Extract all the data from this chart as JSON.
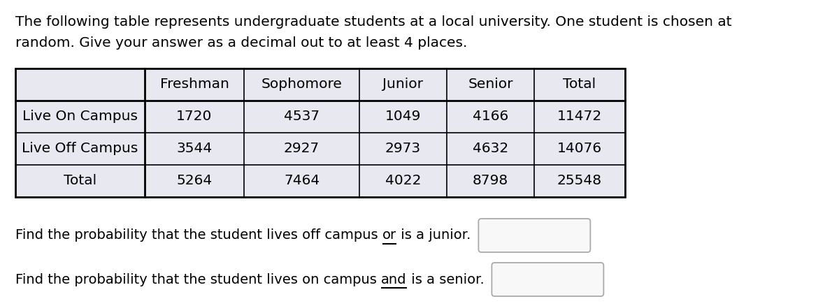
{
  "intro_line1": "The following table represents undergraduate students at a local university. One student is chosen at",
  "intro_line2": "random. Give your answer as a decimal out to at least 4 places.",
  "col_headers": [
    "",
    "Freshman",
    "Sophomore",
    "Junior",
    "Senior",
    "Total"
  ],
  "rows": [
    [
      "Live On Campus",
      "1720",
      "4537",
      "1049",
      "4166",
      "11472"
    ],
    [
      "Live Off Campus",
      "3544",
      "2927",
      "2973",
      "4632",
      "14076"
    ],
    [
      "Total",
      "5264",
      "7464",
      "4022",
      "8798",
      "25548"
    ]
  ],
  "q1_before": "Find the probability that the student lives off campus ",
  "q1_keyword": "or",
  "q1_after": " is a junior.",
  "q2_before": "Find the probability that the student lives on campus ",
  "q2_keyword": "and",
  "q2_after": " is a senior.",
  "cell_bg": "#e8e8f0",
  "table_border_color": "#000000",
  "text_color": "#000000",
  "box_edge_color": "#aaaaaa",
  "box_face_color": "#f8f8f8",
  "font_size_intro": 14.5,
  "font_size_table": 14.5,
  "font_size_q": 14.0,
  "fig_width": 12.0,
  "fig_height": 4.38,
  "dpi": 100
}
